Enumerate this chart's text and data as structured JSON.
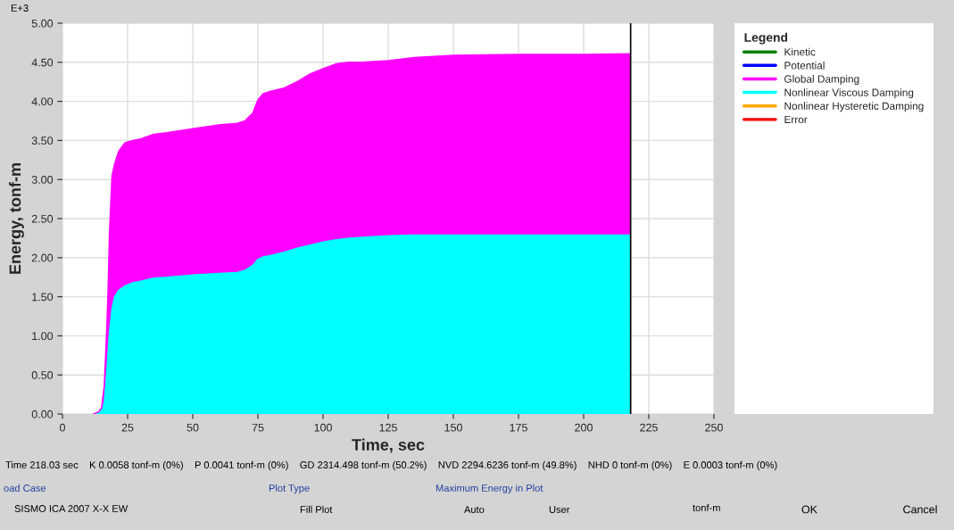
{
  "chart_data": {
    "type": "area",
    "stacked": true,
    "xlabel": "Time, sec",
    "ylabel": "Energy, tonf-m",
    "legend_title": "Legend",
    "x": [
      12,
      14,
      15,
      16,
      17,
      17.5,
      18,
      19,
      20,
      21.5,
      24,
      27,
      30,
      35,
      40,
      50,
      60,
      67,
      70,
      73,
      75,
      77,
      80,
      85,
      90,
      95,
      100,
      105,
      110,
      115,
      125,
      135,
      150,
      175,
      200,
      218.03
    ],
    "series": [
      {
        "name": "Error",
        "color": "#ff0000",
        "values": [
          null,
          null,
          null,
          null,
          null,
          null,
          null,
          null,
          null,
          null,
          null,
          null,
          null,
          null,
          null,
          null,
          null,
          null,
          null,
          null,
          null,
          null,
          null,
          null,
          null,
          null,
          null,
          null,
          null,
          null,
          null,
          null,
          null,
          null,
          null,
          null
        ]
      },
      {
        "name": "Nonlinear Hysteretic Damping",
        "color": "#ffa500",
        "values": [
          null,
          null,
          null,
          null,
          null,
          null,
          null,
          null,
          null,
          null,
          null,
          null,
          null,
          null,
          null,
          null,
          null,
          null,
          null,
          null,
          null,
          null,
          null,
          null,
          null,
          null,
          null,
          null,
          null,
          null,
          null,
          null,
          null,
          null,
          null,
          null
        ]
      },
      {
        "name": "Nonlinear Viscous Damping",
        "color": "#00ffff",
        "values": [
          0,
          0.02,
          0.05,
          0.15,
          0.55,
          0.8,
          1.05,
          1.35,
          1.5,
          1.58,
          1.64,
          1.68,
          1.7,
          1.74,
          1.75,
          1.78,
          1.8,
          1.81,
          1.84,
          1.9,
          1.98,
          2.01,
          2.03,
          2.07,
          2.12,
          2.16,
          2.2,
          2.23,
          2.25,
          2.26,
          2.28,
          2.29,
          2.29,
          2.29,
          2.29,
          2.29
        ]
      },
      {
        "name": "Global Damping",
        "color": "#ff00ff",
        "values": [
          0,
          0.01,
          0.03,
          0.2,
          0.55,
          0.8,
          1.25,
          1.7,
          1.7,
          1.78,
          1.83,
          1.82,
          1.82,
          1.84,
          1.85,
          1.87,
          1.9,
          1.91,
          1.91,
          1.95,
          2.04,
          2.09,
          2.1,
          2.1,
          2.13,
          2.19,
          2.22,
          2.25,
          2.25,
          2.24,
          2.24,
          2.27,
          2.3,
          2.31,
          2.31,
          2.32
        ]
      },
      {
        "name": "Potential",
        "color": "#0000ff",
        "values": [
          null,
          null,
          null,
          null,
          null,
          null,
          null,
          null,
          null,
          null,
          null,
          null,
          null,
          null,
          null,
          null,
          null,
          null,
          null,
          null,
          null,
          null,
          null,
          null,
          null,
          null,
          null,
          null,
          null,
          null,
          null,
          null,
          null,
          null,
          null,
          null
        ]
      },
      {
        "name": "Kinetic",
        "color": "#008000",
        "values": [
          null,
          null,
          null,
          null,
          null,
          null,
          null,
          null,
          null,
          null,
          null,
          null,
          null,
          null,
          null,
          null,
          null,
          null,
          null,
          null,
          null,
          null,
          null,
          null,
          null,
          null,
          null,
          null,
          null,
          null,
          null,
          null,
          null,
          null,
          null,
          null
        ]
      }
    ],
    "xlim": [
      0,
      250
    ],
    "xticks": [
      0,
      25,
      50,
      75,
      100,
      125,
      150,
      175,
      200,
      225,
      250
    ],
    "ylim": [
      0,
      5
    ],
    "yticks": [
      {
        "value": 0,
        "label": "0.00"
      },
      {
        "value": 0.5,
        "label": "0.50"
      },
      {
        "value": 1,
        "label": "1.00"
      },
      {
        "value": 1.5,
        "label": "1.50"
      },
      {
        "value": 2,
        "label": "2.00"
      },
      {
        "value": 2.5,
        "label": "2.50"
      },
      {
        "value": 3,
        "label": "3.00"
      },
      {
        "value": 3.5,
        "label": "3.50"
      },
      {
        "value": 4,
        "label": "4.00"
      },
      {
        "value": 4.5,
        "label": "4.50"
      },
      {
        "value": 5,
        "label": "5.00"
      }
    ],
    "ref_lines": [
      {
        "axis": "x",
        "value": 218.03,
        "color": "#000000"
      }
    ],
    "grid": true,
    "legend": "right",
    "annotations": [
      "E+3",
      "Time 218.03 sec    K 0.0058 tonf-m (0%)    P 0.0041 tonf-m (0%)    GD 2314.498 tonf-m (50.2%)    NVD 2294.6236 tonf-m (49.8%)    NHD 0 tonf-m (0%)    E 0.0003 tonf-m (0%)",
      "oad Case",
      "SISMO ICA 2007 X-X EW",
      "Plot Type",
      "Fill Plot",
      "Maximum Energy in Plot",
      "Auto",
      "User",
      "tonf-m",
      "OK",
      "Cancel"
    ]
  }
}
